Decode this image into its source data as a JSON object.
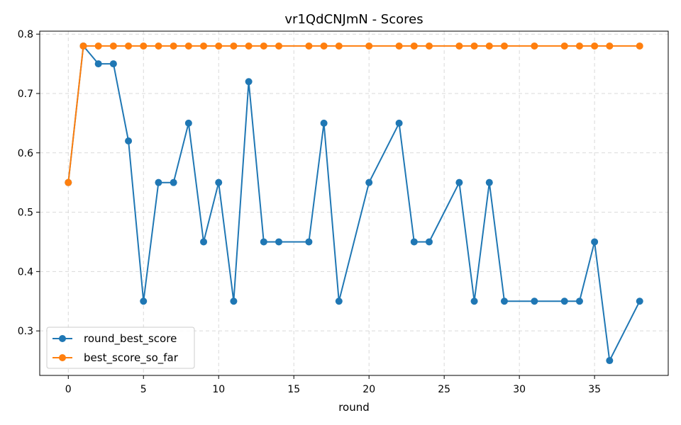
{
  "chart_data": {
    "type": "line",
    "title": "vr1QdCNJmN - Scores",
    "xlabel": "round",
    "ylabel": "",
    "xlim": [
      -1.9,
      39.9
    ],
    "ylim": [
      0.225,
      0.805
    ],
    "xticks": [
      0,
      5,
      10,
      15,
      20,
      25,
      30,
      35
    ],
    "yticks": [
      0.3,
      0.4,
      0.5,
      0.6,
      0.7,
      0.8
    ],
    "xtick_labels": [
      "0",
      "5",
      "10",
      "15",
      "20",
      "25",
      "30",
      "35"
    ],
    "ytick_labels": [
      "0.3",
      "0.4",
      "0.5",
      "0.6",
      "0.7",
      "0.8"
    ],
    "grid": true,
    "legend_position": "lower-left",
    "series": [
      {
        "name": "round_best_score",
        "color": "#1f77b4",
        "x": [
          0,
          1,
          2,
          3,
          4,
          5,
          6,
          7,
          8,
          9,
          10,
          11,
          12,
          13,
          14,
          16,
          17,
          18,
          20,
          22,
          23,
          24,
          26,
          27,
          28,
          29,
          31,
          33,
          34,
          35,
          36,
          38
        ],
        "y": [
          0.55,
          0.78,
          0.75,
          0.75,
          0.62,
          0.35,
          0.55,
          0.55,
          0.65,
          0.45,
          0.55,
          0.35,
          0.72,
          0.45,
          0.45,
          0.45,
          0.65,
          0.35,
          0.55,
          0.65,
          0.45,
          0.45,
          0.55,
          0.35,
          0.55,
          0.35,
          0.35,
          0.35,
          0.35,
          0.45,
          0.25,
          0.35
        ]
      },
      {
        "name": "best_score_so_far",
        "color": "#ff7f0e",
        "x": [
          0,
          1,
          2,
          3,
          4,
          5,
          6,
          7,
          8,
          9,
          10,
          11,
          12,
          13,
          14,
          16,
          17,
          18,
          20,
          22,
          23,
          24,
          26,
          27,
          28,
          29,
          31,
          33,
          34,
          35,
          36,
          38
        ],
        "y": [
          0.55,
          0.78,
          0.78,
          0.78,
          0.78,
          0.78,
          0.78,
          0.78,
          0.78,
          0.78,
          0.78,
          0.78,
          0.78,
          0.78,
          0.78,
          0.78,
          0.78,
          0.78,
          0.78,
          0.78,
          0.78,
          0.78,
          0.78,
          0.78,
          0.78,
          0.78,
          0.78,
          0.78,
          0.78,
          0.78,
          0.78,
          0.78
        ]
      }
    ]
  }
}
